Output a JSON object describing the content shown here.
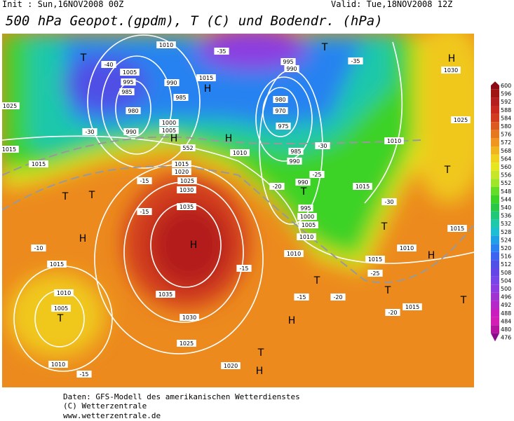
{
  "header": {
    "init": "Init : Sun,16NOV2008 00Z",
    "valid": "Valid: Tue,18NOV2008 12Z",
    "title": "500 hPa Geopot.(gpdm), T (C) und Bodendr. (hPa)"
  },
  "colorbar": {
    "labels": [
      "600",
      "596",
      "592",
      "588",
      "584",
      "580",
      "576",
      "572",
      "568",
      "564",
      "560",
      "556",
      "552",
      "548",
      "544",
      "540",
      "536",
      "532",
      "528",
      "524",
      "520",
      "516",
      "512",
      "508",
      "504",
      "500",
      "496",
      "492",
      "488",
      "484",
      "480",
      "476"
    ],
    "colors": [
      "#8c0a14",
      "#a01414",
      "#b41e1e",
      "#c8281e",
      "#d23c1e",
      "#dc5a1e",
      "#e6781e",
      "#f0961e",
      "#f0b41e",
      "#f0d21e",
      "#e6e61e",
      "#c8e628",
      "#a0e628",
      "#64dc28",
      "#3cd228",
      "#28c846",
      "#1ec878",
      "#1ec8aa",
      "#1ebed2",
      "#1ea0e6",
      "#2882f0",
      "#3c64f0",
      "#5050e6",
      "#6446e6",
      "#7846e6",
      "#8c3ce0",
      "#a032d2",
      "#b428c8",
      "#c81ebe",
      "#d21eb4",
      "#b414a0",
      "#8c0a8c"
    ]
  },
  "map": {
    "labels": [
      "1010",
      "1005",
      "995",
      "985",
      "980",
      "990",
      "990",
      "985",
      "1000",
      "1005",
      "1015",
      "995",
      "990",
      "980",
      "970",
      "975",
      "985",
      "990",
      "990",
      "995",
      "1000",
      "1005",
      "1010",
      "1025",
      "1015",
      "1015",
      "1010",
      "1015",
      "1020",
      "1025",
      "1030",
      "1035",
      "1035",
      "1030",
      "1025",
      "1020",
      "1015",
      "1010",
      "1005",
      "1010",
      "1030",
      "1025",
      "1010",
      "1015",
      "1015",
      "1010",
      "1015",
      "1015",
      "1010",
      "H",
      "H",
      "T",
      "H",
      "H",
      "H",
      "T",
      "T",
      "H",
      "T",
      "T",
      "H",
      "T",
      "T",
      "T",
      "H",
      "T",
      "T",
      "H",
      "T",
      "T",
      "-35",
      "-30",
      "-30",
      "-25",
      "-20",
      "-15",
      "-15",
      "-15",
      "-10",
      "-15",
      "-20",
      "-25",
      "-30",
      "-35",
      "-40",
      "-20",
      "-15",
      "552"
    ]
  },
  "footer": {
    "lines": [
      "Daten: GFS-Modell des amerikanischen Wetterdienstes",
      "(C) Wetterzentrale",
      "www.wetterzentrale.de"
    ]
  }
}
